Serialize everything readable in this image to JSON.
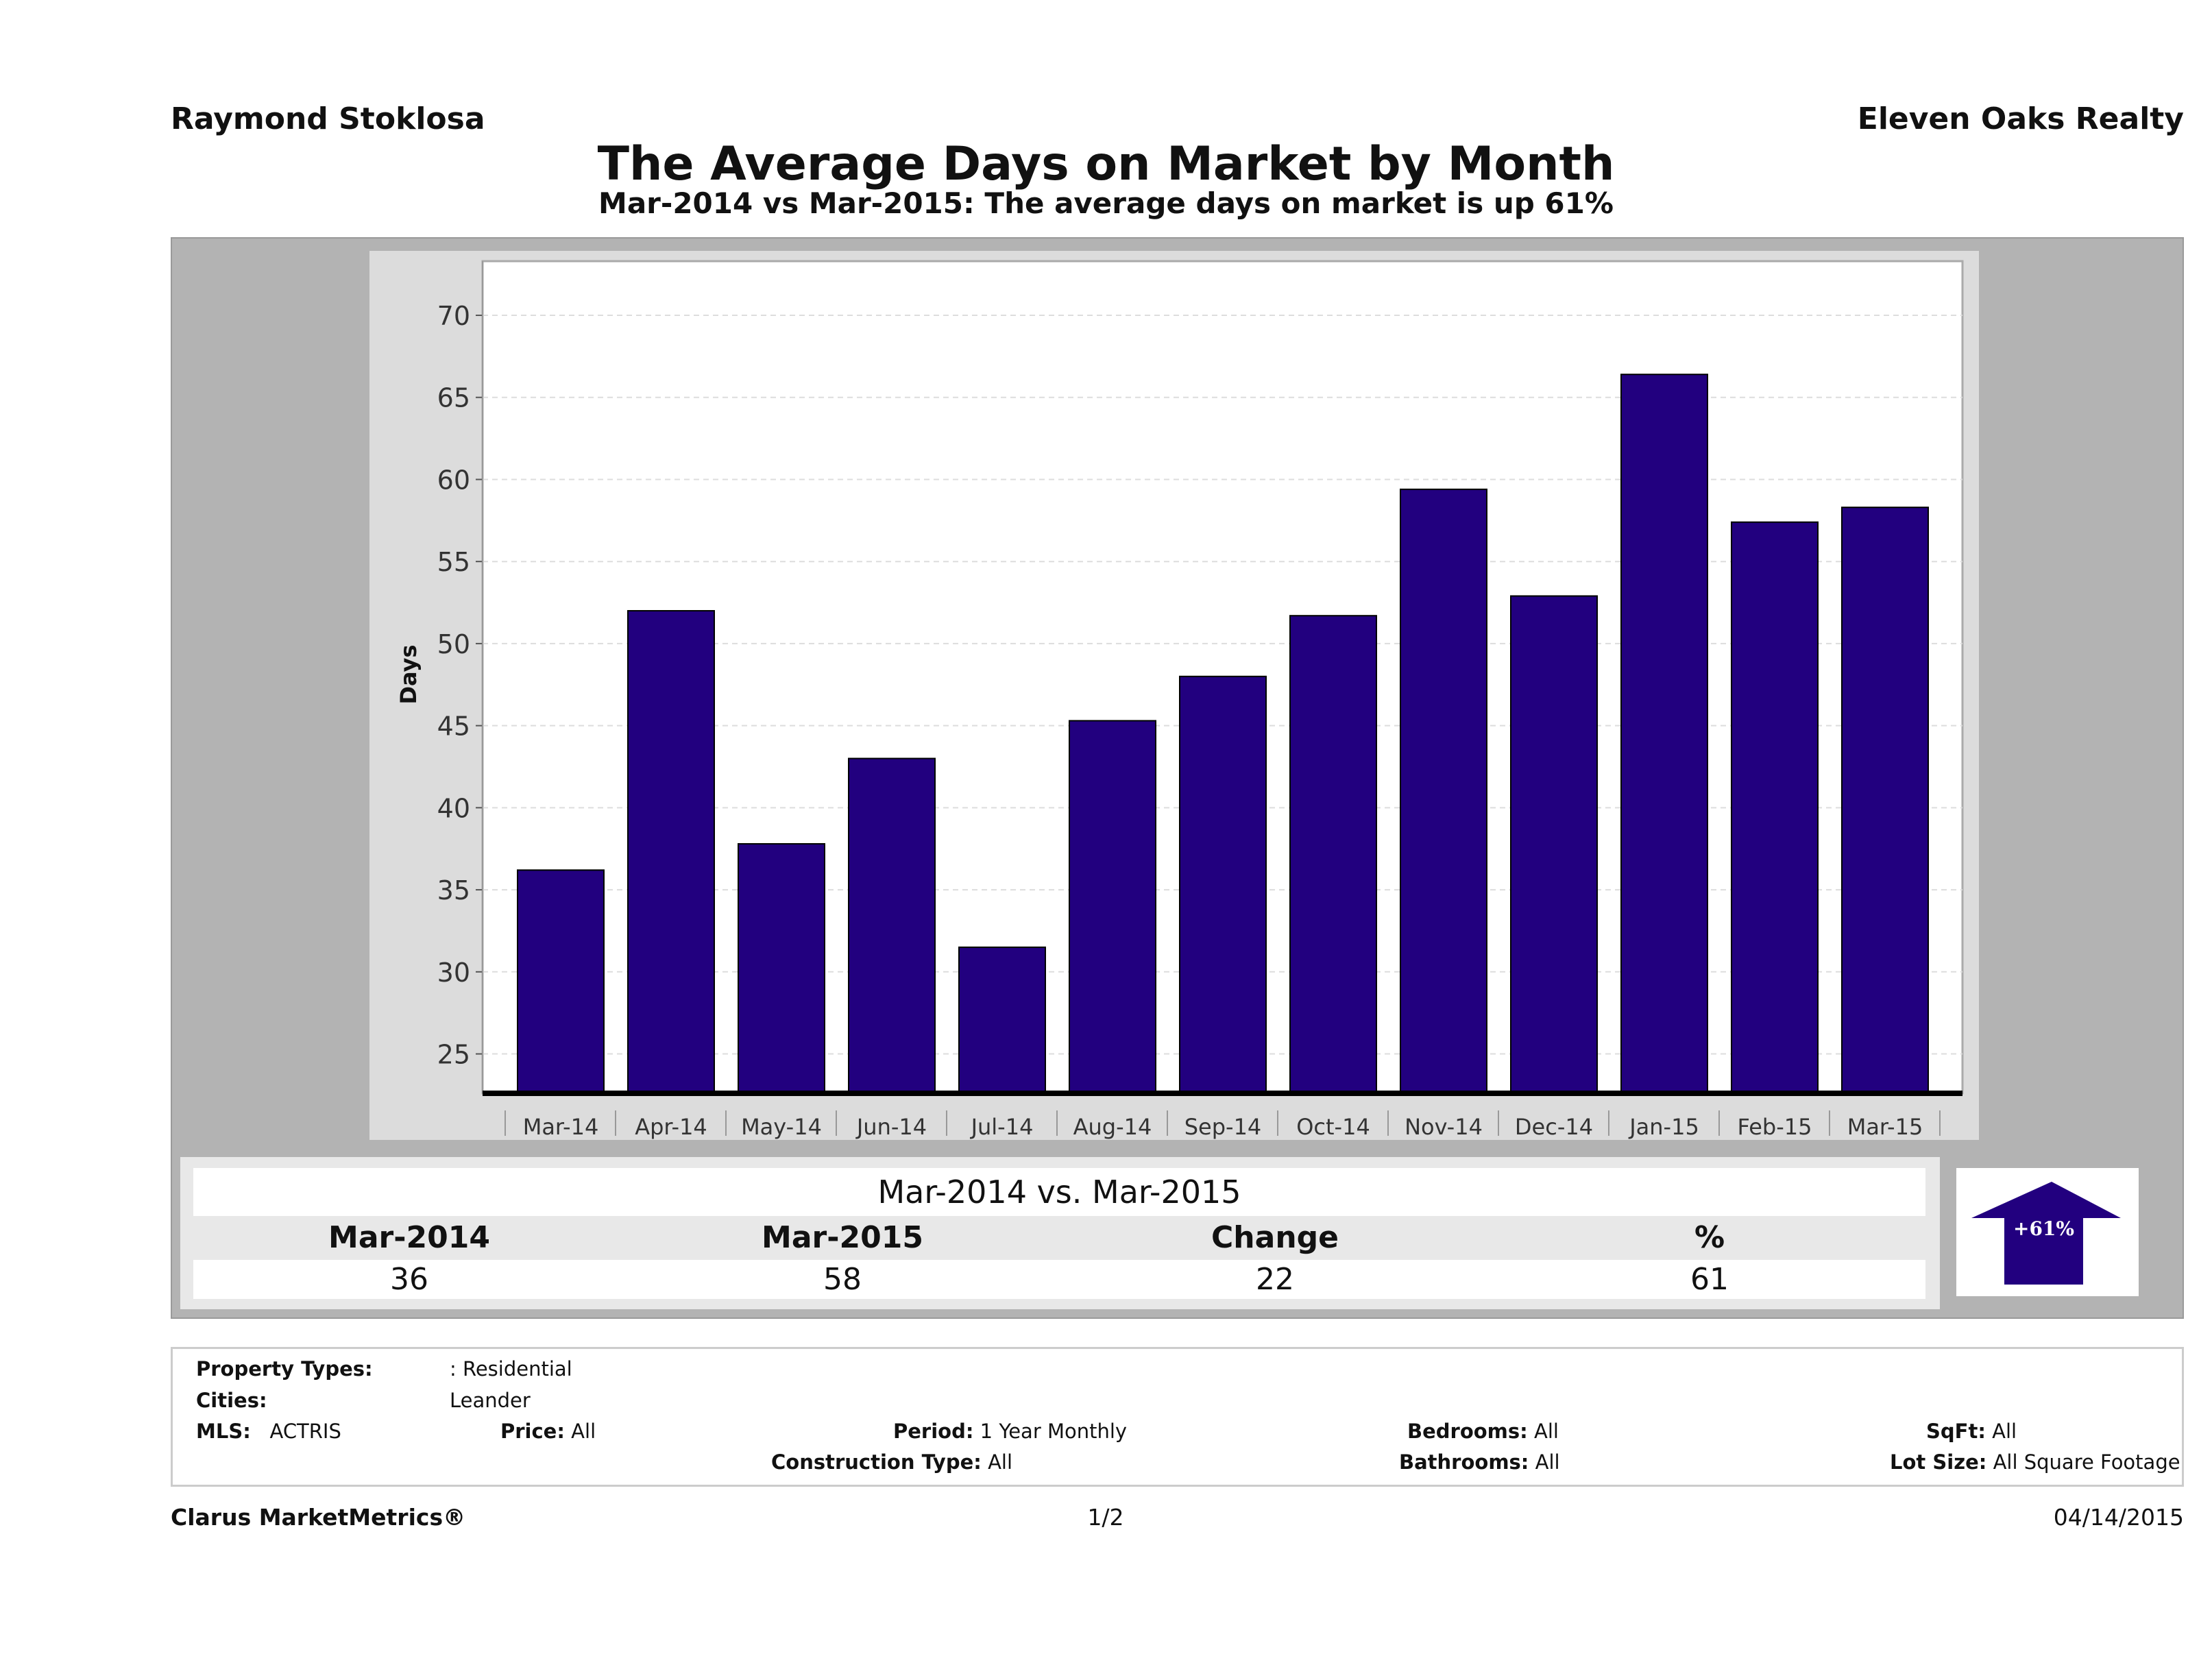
{
  "header": {
    "agent": "Raymond Stoklosa",
    "company": "Eleven Oaks Realty",
    "title": "The Average Days on Market by Month",
    "subtitle": "Mar-2014 vs Mar-2015: The average days on market is up 61%"
  },
  "chart_data": {
    "type": "bar",
    "ylabel": "Days",
    "xlabel": "",
    "categories": [
      "Mar-14",
      "Apr-14",
      "May-14",
      "Jun-14",
      "Jul-14",
      "Aug-14",
      "Sep-14",
      "Oct-14",
      "Nov-14",
      "Dec-14",
      "Jan-15",
      "Feb-15",
      "Mar-15"
    ],
    "values": [
      36.2,
      52,
      37.8,
      43,
      31.5,
      45.3,
      48,
      51.7,
      59.4,
      52.9,
      66.4,
      57.4,
      58.3
    ],
    "yticks": [
      25,
      30,
      35,
      40,
      45,
      50,
      55,
      60,
      65,
      70
    ],
    "ylim": [
      22.6,
      73.3
    ],
    "grid": true,
    "bar_color": "#22007f"
  },
  "stats": {
    "title": "Mar-2014 vs. Mar-2015",
    "headers": [
      "Mar-2014",
      "Mar-2015",
      "Change",
      "%"
    ],
    "values": [
      "36",
      "58",
      "22",
      "61"
    ],
    "badge": "+61%",
    "badge_direction": "up"
  },
  "filters": {
    "property_types_label": "Property Types:",
    "property_types": ": Residential",
    "cities_label": "Cities:",
    "cities": "Leander",
    "mls_label": "MLS:",
    "mls": "ACTRIS",
    "price_label": "Price:",
    "price": "All",
    "period_label": "Period:",
    "period": "1 Year Monthly",
    "construction_label": "Construction Type:",
    "construction": "All",
    "bedrooms_label": "Bedrooms:",
    "bedrooms": "All",
    "bathrooms_label": "Bathrooms:",
    "bathrooms": "All",
    "sqft_label": "SqFt:",
    "sqft": "All",
    "lot_label": "Lot Size:",
    "lot": "All Square Footage"
  },
  "footer": {
    "brand": "Clarus MarketMetrics®",
    "page": "1/2",
    "date": "04/14/2015"
  }
}
